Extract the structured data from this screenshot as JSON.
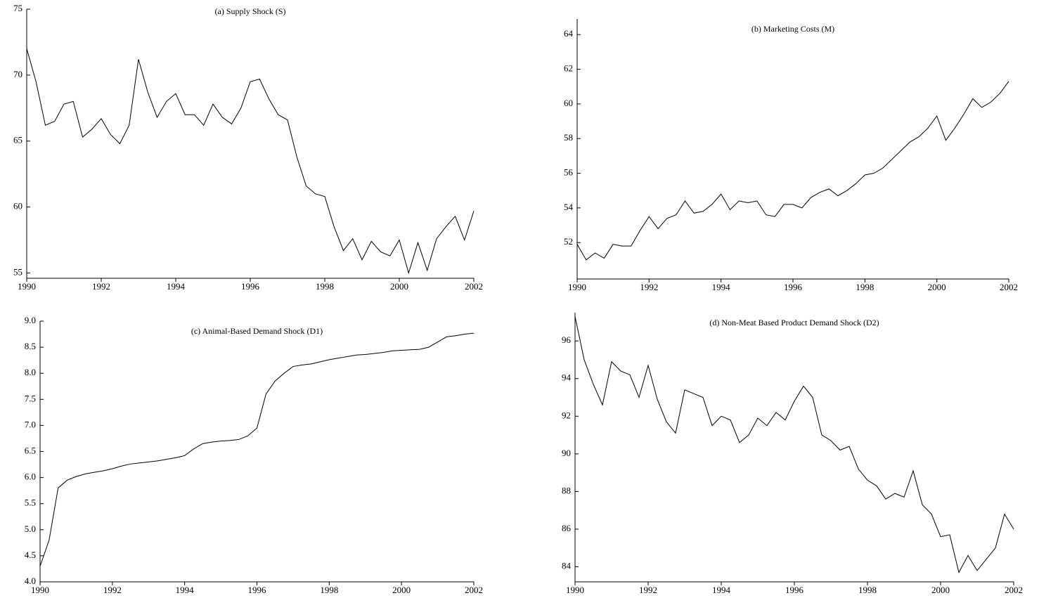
{
  "chart_data": [
    {
      "type": "line",
      "title": "(a) Supply Shock (S)",
      "x": [
        1990,
        1990.25,
        1990.5,
        1990.75,
        1991,
        1991.25,
        1991.5,
        1991.75,
        1992,
        1992.25,
        1992.5,
        1992.75,
        1993,
        1993.25,
        1993.5,
        1993.75,
        1994,
        1994.25,
        1994.5,
        1994.75,
        1995,
        1995.25,
        1995.5,
        1995.75,
        1996,
        1996.25,
        1996.5,
        1996.75,
        1997,
        1997.25,
        1997.5,
        1997.75,
        1998,
        1998.25,
        1998.5,
        1998.75,
        1999,
        1999.25,
        1999.5,
        1999.75,
        2000,
        2000.25,
        2000.5,
        2000.75,
        2001,
        2001.25,
        2001.5,
        2001.75,
        2002
      ],
      "series": [
        {
          "color": "#000000",
          "values": [
            72.0,
            69.5,
            66.2,
            66.5,
            67.8,
            68.0,
            65.3,
            65.9,
            66.7,
            65.5,
            64.8,
            66.2,
            71.2,
            68.7,
            66.8,
            68.0,
            68.6,
            67.0,
            67.0,
            66.2,
            67.8,
            66.8,
            66.3,
            67.5,
            69.5,
            69.7,
            68.2,
            67.0,
            66.6,
            63.8,
            61.6,
            61.0,
            60.8,
            58.5,
            56.7,
            57.6,
            56.0,
            57.4,
            56.6,
            56.3,
            57.5,
            55.0,
            57.3,
            55.2,
            57.6,
            58.5,
            59.3,
            57.5,
            59.7
          ]
        }
      ],
      "xlim": [
        1990,
        2002
      ],
      "xticks": [
        1990,
        1992,
        1994,
        1996,
        1998,
        2000,
        2002
      ],
      "ylim": [
        54.6,
        75
      ],
      "yticks": [
        55,
        60,
        65,
        70,
        75
      ]
    },
    {
      "type": "line",
      "title": "(b) Marketing Costs (M)",
      "x": [
        1990,
        1990.25,
        1990.5,
        1990.75,
        1991,
        1991.25,
        1991.5,
        1991.75,
        1992,
        1992.25,
        1992.5,
        1992.75,
        1993,
        1993.25,
        1993.5,
        1993.75,
        1994,
        1994.25,
        1994.5,
        1994.75,
        1995,
        1995.25,
        1995.5,
        1995.75,
        1996,
        1996.25,
        1996.5,
        1996.75,
        1997,
        1997.25,
        1997.5,
        1997.75,
        1998,
        1998.25,
        1998.5,
        1998.75,
        1999,
        1999.25,
        1999.5,
        1999.75,
        2000,
        2000.25,
        2000.5,
        2000.75,
        2001,
        2001.25,
        2001.5,
        2001.75,
        2002
      ],
      "series": [
        {
          "color": "#000000",
          "values": [
            51.9,
            51.0,
            51.4,
            51.1,
            51.9,
            51.8,
            51.8,
            52.7,
            53.5,
            52.8,
            53.4,
            53.6,
            54.4,
            53.7,
            53.8,
            54.2,
            54.8,
            53.9,
            54.4,
            54.3,
            54.4,
            53.6,
            53.5,
            54.2,
            54.2,
            54.0,
            54.6,
            54.9,
            55.1,
            54.7,
            55.0,
            55.4,
            55.9,
            56.0,
            56.3,
            56.8,
            57.3,
            57.8,
            58.1,
            58.6,
            59.3,
            57.9,
            58.6,
            59.4,
            60.3,
            59.8,
            60.1,
            60.6,
            61.3
          ]
        }
      ],
      "xlim": [
        1990,
        2002
      ],
      "xticks": [
        1990,
        1992,
        1994,
        1996,
        1998,
        2000,
        2002
      ],
      "ylim": [
        49.9,
        64.9
      ],
      "yticks": [
        52,
        54,
        56,
        58,
        60,
        62,
        64
      ]
    },
    {
      "type": "line",
      "title": "(c) Animal-Based Demand Shock (D1)",
      "x": [
        1990,
        1990.25,
        1990.5,
        1990.75,
        1991,
        1991.25,
        1991.5,
        1991.75,
        1992,
        1992.25,
        1992.5,
        1992.75,
        1993,
        1993.25,
        1993.5,
        1993.75,
        1994,
        1994.25,
        1994.5,
        1994.75,
        1995,
        1995.25,
        1995.5,
        1995.75,
        1996,
        1996.25,
        1996.5,
        1996.75,
        1997,
        1997.25,
        1997.5,
        1997.75,
        1998,
        1998.25,
        1998.5,
        1998.75,
        1999,
        1999.25,
        1999.5,
        1999.75,
        2000,
        2000.25,
        2000.5,
        2000.75,
        2001,
        2001.25,
        2001.5,
        2001.75,
        2002
      ],
      "series": [
        {
          "color": "#000000",
          "values": [
            4.3,
            4.8,
            5.8,
            5.95,
            6.02,
            6.07,
            6.1,
            6.13,
            6.17,
            6.22,
            6.26,
            6.28,
            6.3,
            6.32,
            6.35,
            6.38,
            6.42,
            6.55,
            6.65,
            6.68,
            6.7,
            6.71,
            6.73,
            6.8,
            6.95,
            7.6,
            7.85,
            8.0,
            8.13,
            8.16,
            8.18,
            8.22,
            8.26,
            8.29,
            8.32,
            8.35,
            8.36,
            8.38,
            8.4,
            8.43,
            8.44,
            8.45,
            8.46,
            8.5,
            8.6,
            8.7,
            8.72,
            8.75,
            8.77
          ]
        }
      ],
      "xlim": [
        1990,
        2002
      ],
      "xticks": [
        1990,
        1992,
        1994,
        1996,
        1998,
        2000,
        2002
      ],
      "ylim": [
        4,
        9
      ],
      "yticks": [
        {
          "value": 4,
          "label": "4.0"
        },
        4.5,
        {
          "value": 5,
          "label": "5.0"
        },
        5.5,
        {
          "value": 6,
          "label": "6.0"
        },
        6.5,
        {
          "value": 7,
          "label": "7.0"
        },
        7.5,
        {
          "value": 8,
          "label": "8.0"
        },
        8.5,
        {
          "value": 9,
          "label": "9.0"
        }
      ]
    },
    {
      "type": "line",
      "title": "(d) Non-Meat Based Product Demand Shock (D2)",
      "x": [
        1990,
        1990.25,
        1990.5,
        1990.75,
        1991,
        1991.25,
        1991.5,
        1991.75,
        1992,
        1992.25,
        1992.5,
        1992.75,
        1993,
        1993.25,
        1993.5,
        1993.75,
        1994,
        1994.25,
        1994.5,
        1994.75,
        1995,
        1995.25,
        1995.5,
        1995.75,
        1996,
        1996.25,
        1996.5,
        1996.75,
        1997,
        1997.25,
        1997.5,
        1997.75,
        1998,
        1998.25,
        1998.5,
        1998.75,
        1999,
        1999.25,
        1999.5,
        1999.75,
        2000,
        2000.25,
        2000.5,
        2000.75,
        2001,
        2001.25,
        2001.5,
        2001.75,
        2002
      ],
      "series": [
        {
          "color": "#000000",
          "values": [
            97.3,
            95.0,
            93.7,
            92.6,
            94.9,
            94.4,
            94.2,
            93.0,
            94.7,
            92.9,
            91.7,
            91.1,
            93.4,
            93.2,
            93.0,
            91.5,
            92.0,
            91.8,
            90.6,
            91.0,
            91.9,
            91.5,
            92.2,
            91.8,
            92.8,
            93.6,
            93.0,
            91.0,
            90.7,
            90.2,
            90.4,
            89.2,
            88.6,
            88.3,
            87.6,
            87.9,
            87.7,
            89.1,
            87.3,
            86.8,
            85.6,
            85.7,
            83.7,
            84.6,
            83.8,
            84.4,
            85.0,
            86.8,
            86.0
          ]
        }
      ],
      "xlim": [
        1990,
        2002
      ],
      "xticks": [
        1990,
        1992,
        1994,
        1996,
        1998,
        2000,
        2002
      ],
      "ylim": [
        83.2,
        97.5
      ],
      "yticks": [
        84,
        86,
        88,
        90,
        92,
        94,
        96
      ]
    }
  ]
}
